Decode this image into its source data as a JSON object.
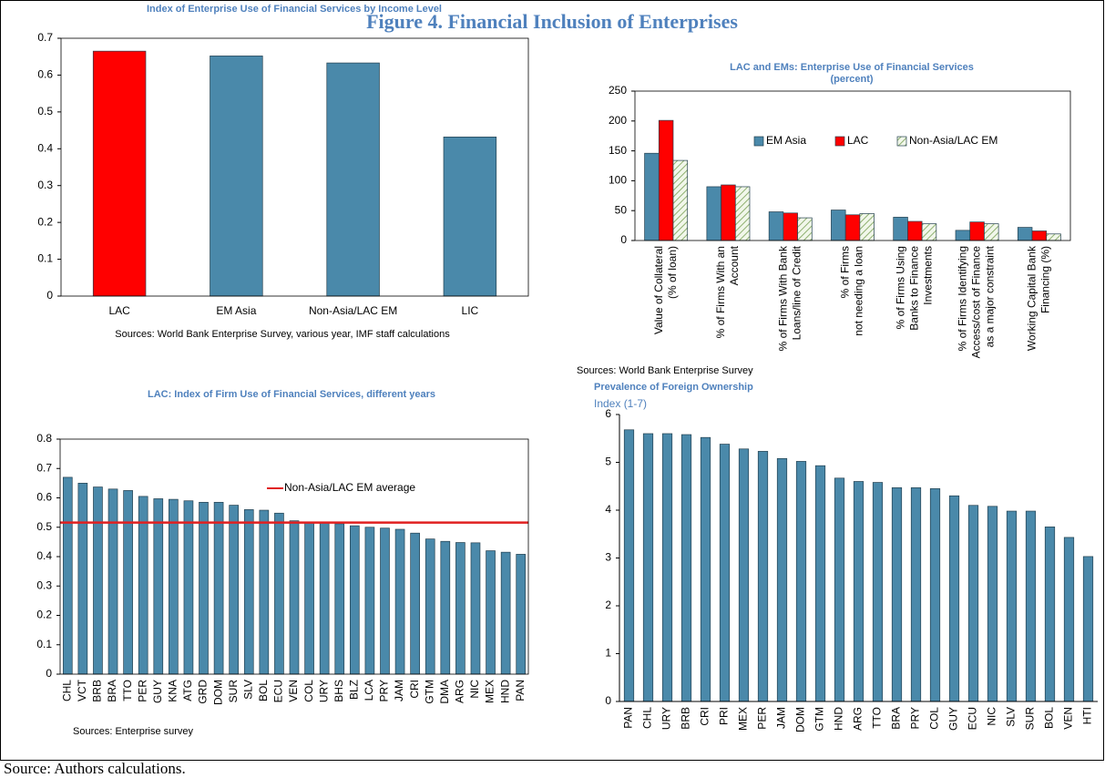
{
  "title": "Figure 4. Financial Inclusion of Enterprises",
  "source": "Source: Authors calculations.",
  "chart_data": [
    {
      "type": "bar",
      "title": "Index of Enterprise Use of Financial Services by Income Level",
      "categories": [
        "LAC",
        "EM Asia",
        "Non-Asia/LAC EM",
        "LIC"
      ],
      "values": [
        0.665,
        0.652,
        0.633,
        0.432
      ],
      "colors": [
        "#ff0000",
        "#4a89aa",
        "#4a89aa",
        "#4a89aa"
      ],
      "ylim": [
        0,
        0.7
      ],
      "yticks": [
        0,
        0.1,
        0.2,
        0.3,
        0.4,
        0.5,
        0.6,
        0.7
      ],
      "grid": false,
      "note": "Sources: World Bank Enterprise Survey, various year, IMF staff calculations"
    },
    {
      "type": "grouped_bar",
      "title": "LAC and EMs: Enterprise Use of Financial Services",
      "subtitle": "(percent)",
      "categories": [
        [
          "Value of Collateral",
          "(% of loan)"
        ],
        [
          "% of Firms With an",
          "Account"
        ],
        [
          "% of Firms With Bank",
          "Loans/line of Credit"
        ],
        [
          "% of Firms",
          "not needing a loan"
        ],
        [
          "% of Firms Using",
          "Banks to Finance",
          "Investments"
        ],
        [
          "% of Firms Identifying",
          "Access/cost of Finance",
          "as a major constraint"
        ],
        [
          "Working Capital Bank",
          "Financing (%)"
        ]
      ],
      "series": [
        {
          "name": "EM Asia",
          "color": "#4a89aa",
          "values": [
            146,
            90,
            48,
            51,
            39,
            17,
            22
          ]
        },
        {
          "name": "LAC",
          "color": "#ff0000",
          "values": [
            201,
            93,
            46,
            43,
            32,
            31,
            16
          ]
        },
        {
          "name": "Non-Asia/LAC EM",
          "color": "#8fb070",
          "hatch": true,
          "values": [
            134,
            90,
            38,
            45,
            28,
            28,
            11
          ]
        }
      ],
      "ylim": [
        0,
        250
      ],
      "yticks": [
        0,
        50,
        100,
        150,
        200,
        250
      ],
      "grid": false,
      "legend": "upper right",
      "note": "Sources: World Bank Enterprise Survey"
    },
    {
      "type": "bar",
      "title": "LAC: Index of Firm Use of Financial Services, different years",
      "categories": [
        "CHL",
        "VCT",
        "BRB",
        "BRA",
        "TTO",
        "PER",
        "GUY",
        "KNA",
        "ATG",
        "GRD",
        "DOM",
        "SUR",
        "SLV",
        "BOL",
        "ECU",
        "VEN",
        "COL",
        "URY",
        "BHS",
        "BLZ",
        "LCA",
        "PRY",
        "JAM",
        "CRI",
        "GTM",
        "DMA",
        "ARG",
        "NIC",
        "MEX",
        "HND",
        "PAN"
      ],
      "values": [
        0.67,
        0.65,
        0.637,
        0.63,
        0.625,
        0.605,
        0.597,
        0.595,
        0.59,
        0.585,
        0.585,
        0.575,
        0.56,
        0.558,
        0.548,
        0.522,
        0.518,
        0.515,
        0.512,
        0.505,
        0.5,
        0.497,
        0.493,
        0.48,
        0.46,
        0.452,
        0.448,
        0.447,
        0.42,
        0.415,
        0.408
      ],
      "color": "#4a89aa",
      "reference": {
        "name": "Non-Asia/LAC EM average",
        "value": 0.516,
        "color": "#e02020"
      },
      "ylim": [
        0,
        0.8
      ],
      "yticks": [
        0,
        0.1,
        0.2,
        0.3,
        0.4,
        0.5,
        0.6,
        0.7,
        0.8
      ],
      "grid": false,
      "note": "Sources: Enterprise survey"
    },
    {
      "type": "bar",
      "title": "Prevalence of Foreign Ownership",
      "y_label": "Index (1-7)",
      "categories": [
        "PAN",
        "CHL",
        "URY",
        "BRB",
        "CRI",
        "PRI",
        "MEX",
        "PER",
        "JAM",
        "DOM",
        "GTM",
        "HND",
        "ARG",
        "TTO",
        "BRA",
        "PRY",
        "COL",
        "GUY",
        "ECU",
        "NIC",
        "SLV",
        "SUR",
        "BOL",
        "VEN",
        "HTI"
      ],
      "values": [
        5.68,
        5.6,
        5.6,
        5.58,
        5.52,
        5.38,
        5.28,
        5.23,
        5.08,
        5.02,
        4.93,
        4.67,
        4.6,
        4.58,
        4.47,
        4.47,
        4.45,
        4.3,
        4.1,
        4.08,
        3.98,
        3.98,
        3.65,
        3.43,
        3.03
      ],
      "color": "#4a89aa",
      "ylim": [
        0,
        6
      ],
      "yticks": [
        0,
        1,
        2,
        3,
        4,
        5,
        6
      ],
      "grid": false
    }
  ]
}
